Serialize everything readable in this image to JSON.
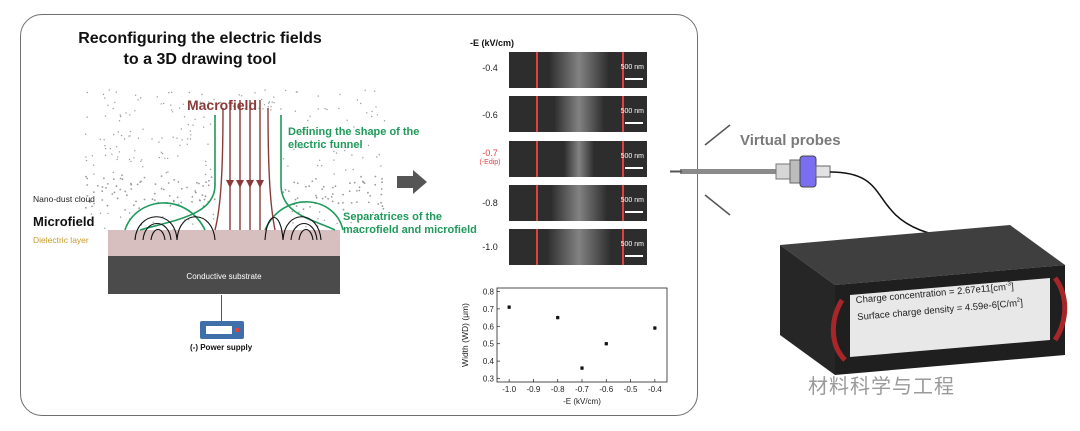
{
  "title": "Reconfiguring the electric fields to a 3D drawing tool",
  "diagram": {
    "macrofield": "Macrofield",
    "funnel_label": "Defining the shape of the electric funnel",
    "nano_dust": "Nano-dust cloud",
    "microfield": "Microfield",
    "dielectric": "Dielectric layer",
    "separatrices": "Separatrices of the macrofield and microfield",
    "substrate": "Conductive substrate",
    "power_supply": "(-) Power supply"
  },
  "micrographs": {
    "header": "-E (kV/cm)",
    "scale": "500 nm",
    "rows": [
      {
        "label": "-0.4",
        "sub": ""
      },
      {
        "label": "-0.6",
        "sub": ""
      },
      {
        "label": "-0.7",
        "sub": "(-Edip)"
      },
      {
        "label": "-0.8",
        "sub": ""
      },
      {
        "label": "-1.0",
        "sub": ""
      }
    ]
  },
  "chart_data": {
    "type": "scatter",
    "title": "",
    "xlabel": "-E (kV/cm)",
    "ylabel": "Width (WD) (μm)",
    "x": [
      -1.0,
      -0.8,
      -0.7,
      -0.6,
      -0.4
    ],
    "y": [
      0.71,
      0.65,
      0.36,
      0.5,
      0.59
    ],
    "err": [
      0.01,
      0.01,
      0.01,
      0.01,
      0.01
    ],
    "xlim": [
      -1.05,
      -0.35
    ],
    "ylim": [
      0.28,
      0.82
    ],
    "xticks": [
      "-1.0",
      "-0.9",
      "-0.8",
      "-0.7",
      "-0.6",
      "-0.5",
      "-0.4"
    ],
    "yticks": [
      "0.3",
      "0.4",
      "0.5",
      "0.6",
      "0.7",
      "0.8"
    ]
  },
  "probe": {
    "label": "Virtual probes",
    "line1": "Charge concentration = 2.67e11[cm",
    "line1_sup": "-3",
    "line2": "Surface charge density = 4.59e-6[C/m",
    "line2_sup": "2",
    "close": "]"
  },
  "watermark": "材料科学与工程",
  "colors": {
    "green": "#1f9a5a",
    "macro": "#8b3a3a",
    "red": "#e0413d"
  }
}
